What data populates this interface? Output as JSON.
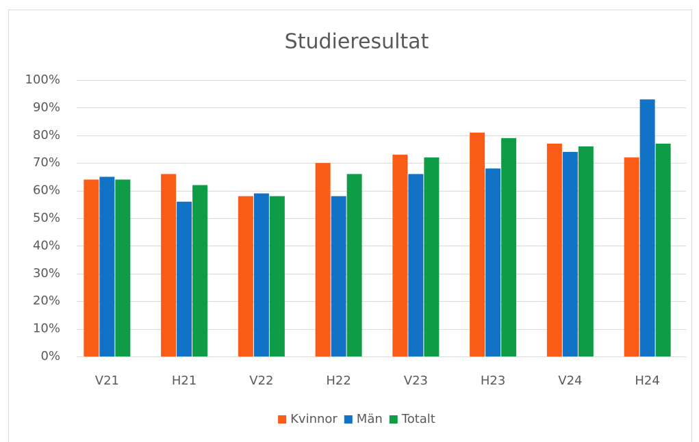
{
  "chart_data": {
    "type": "bar",
    "title": "Studieresultat",
    "categories": [
      "V21",
      "H21",
      "V22",
      "H22",
      "V23",
      "H23",
      "V24",
      "H24"
    ],
    "series": [
      {
        "name": "Kvinnor",
        "color": "#fa5b17",
        "values": [
          64,
          66,
          58,
          70,
          73,
          81,
          77,
          72
        ]
      },
      {
        "name": "Män",
        "color": "#1172c6",
        "values": [
          65,
          56,
          59,
          58,
          66,
          68,
          74,
          93
        ]
      },
      {
        "name": "Totalt",
        "color": "#0e9c46",
        "values": [
          64,
          62,
          58,
          66,
          72,
          79,
          76,
          77
        ]
      }
    ],
    "ylim": [
      0,
      100
    ],
    "yticks": [
      {
        "value": 0,
        "label": "0%"
      },
      {
        "value": 10,
        "label": "10%"
      },
      {
        "value": 20,
        "label": "20%"
      },
      {
        "value": 30,
        "label": "30%"
      },
      {
        "value": 40,
        "label": "40%"
      },
      {
        "value": 50,
        "label": "50%"
      },
      {
        "value": 60,
        "label": "60%"
      },
      {
        "value": 70,
        "label": "70%"
      },
      {
        "value": 80,
        "label": "80%"
      },
      {
        "value": 90,
        "label": "90%"
      },
      {
        "value": 100,
        "label": "100%"
      }
    ],
    "grid": true,
    "legend": "bottom"
  }
}
